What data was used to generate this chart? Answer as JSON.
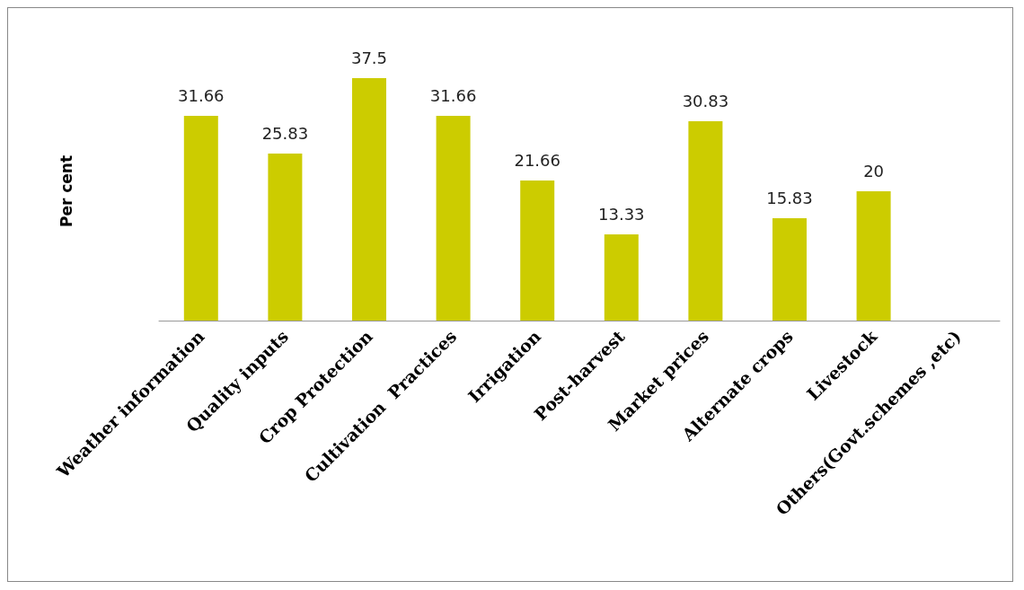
{
  "chart_data": {
    "type": "bar",
    "ylabel": "Per cent",
    "categories": [
      "Weather information",
      "Quality inputs",
      "Crop Protection",
      "Cultivation  Practices",
      "Irrigation",
      "Post-harvest",
      "Market prices",
      "Alternate crops",
      "Livestock",
      "Others(Govt.schemes ,etc)"
    ],
    "series": [
      {
        "color": "#cccc00",
        "values": [
          31.66,
          25.83,
          37.5,
          31.66,
          21.66,
          13.33,
          30.83,
          15.83,
          20,
          null
        ]
      }
    ],
    "data_labels": true,
    "grid": false,
    "tick_labels": "x"
  }
}
